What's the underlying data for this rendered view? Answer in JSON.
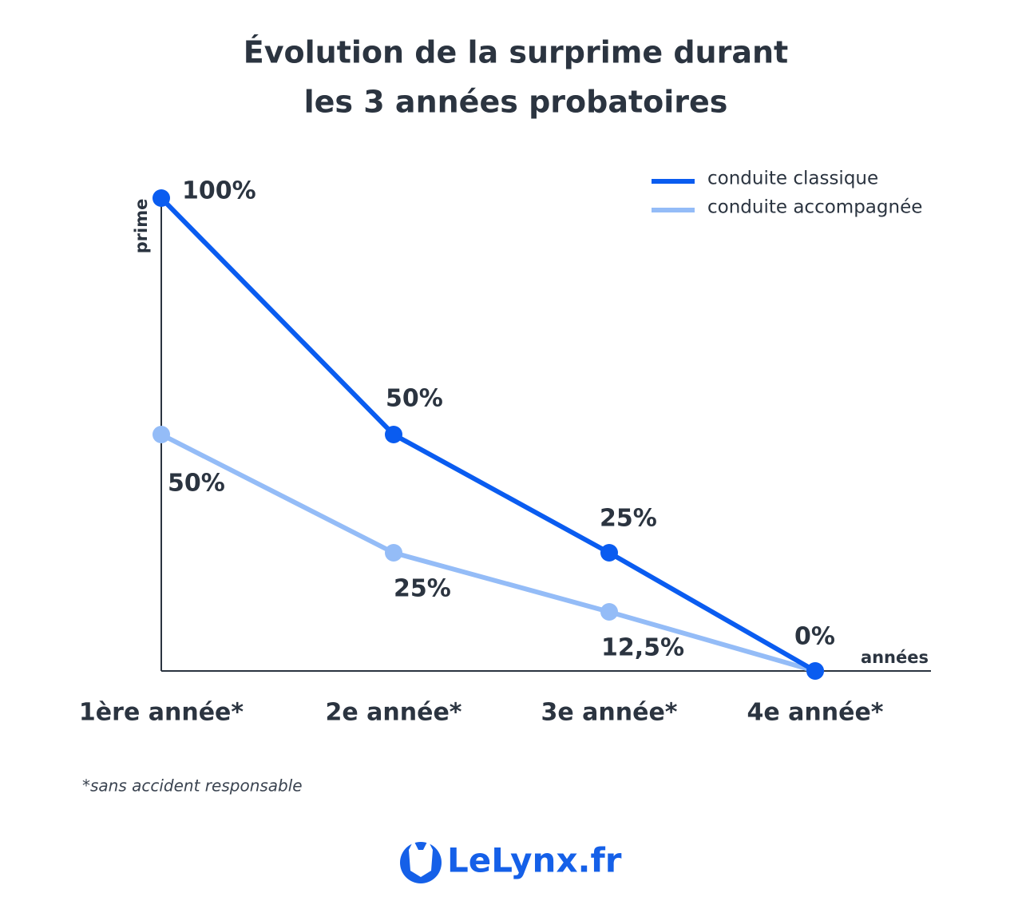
{
  "chart_data": {
    "type": "line",
    "title": [
      "Évolution de la surprime durant",
      "les 3 années probatoires"
    ],
    "categories": [
      "1ère année*",
      "2e année*",
      "3e année*",
      "4e année*"
    ],
    "series": [
      {
        "name": "conduite classique",
        "color": "#0a5cf0",
        "values": [
          100,
          50,
          25,
          0
        ],
        "value_labels": [
          "100%",
          "50%",
          "25%",
          "0%"
        ]
      },
      {
        "name": "conduite accompagnée",
        "color": "#94bcf7",
        "values": [
          50,
          25,
          12.5,
          0
        ],
        "value_labels": [
          "50%",
          "25%",
          "12,5%",
          null
        ]
      }
    ],
    "ylim": [
      0,
      100
    ],
    "y_label": "prime",
    "x_label": "années",
    "legend": "upper right",
    "footnote": "*sans accident responsable",
    "logo": "LeLynx.fr"
  }
}
